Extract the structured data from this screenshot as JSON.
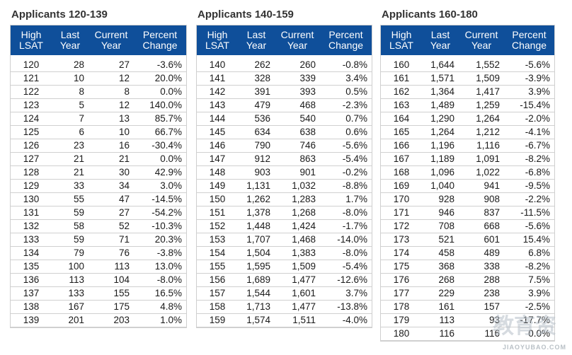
{
  "headers": [
    "High\nLSAT",
    "Last\nYear",
    "Current\nYear",
    "Percent\nChange"
  ],
  "panels": [
    {
      "title": "Applicants 120-139",
      "rows": [
        [
          "120",
          "28",
          "27",
          "-3.6%"
        ],
        [
          "121",
          "10",
          "12",
          "20.0%"
        ],
        [
          "122",
          "8",
          "8",
          "0.0%"
        ],
        [
          "123",
          "5",
          "12",
          "140.0%"
        ],
        [
          "124",
          "7",
          "13",
          "85.7%"
        ],
        [
          "125",
          "6",
          "10",
          "66.7%"
        ],
        [
          "126",
          "23",
          "16",
          "-30.4%"
        ],
        [
          "127",
          "21",
          "21",
          "0.0%"
        ],
        [
          "128",
          "21",
          "30",
          "42.9%"
        ],
        [
          "129",
          "33",
          "34",
          "3.0%"
        ],
        [
          "130",
          "55",
          "47",
          "-14.5%"
        ],
        [
          "131",
          "59",
          "27",
          "-54.2%"
        ],
        [
          "132",
          "58",
          "52",
          "-10.3%"
        ],
        [
          "133",
          "59",
          "71",
          "20.3%"
        ],
        [
          "134",
          "79",
          "76",
          "-3.8%"
        ],
        [
          "135",
          "100",
          "113",
          "13.0%"
        ],
        [
          "136",
          "113",
          "104",
          "-8.0%"
        ],
        [
          "137",
          "133",
          "155",
          "16.5%"
        ],
        [
          "138",
          "167",
          "175",
          "4.8%"
        ],
        [
          "139",
          "201",
          "203",
          "1.0%"
        ]
      ]
    },
    {
      "title": "Applicants 140-159",
      "rows": [
        [
          "140",
          "262",
          "260",
          "-0.8%"
        ],
        [
          "141",
          "328",
          "339",
          "3.4%"
        ],
        [
          "142",
          "391",
          "393",
          "0.5%"
        ],
        [
          "143",
          "479",
          "468",
          "-2.3%"
        ],
        [
          "144",
          "536",
          "540",
          "0.7%"
        ],
        [
          "145",
          "634",
          "638",
          "0.6%"
        ],
        [
          "146",
          "790",
          "746",
          "-5.6%"
        ],
        [
          "147",
          "912",
          "863",
          "-5.4%"
        ],
        [
          "148",
          "903",
          "901",
          "-0.2%"
        ],
        [
          "149",
          "1,131",
          "1,032",
          "-8.8%"
        ],
        [
          "150",
          "1,262",
          "1,283",
          "1.7%"
        ],
        [
          "151",
          "1,378",
          "1,268",
          "-8.0%"
        ],
        [
          "152",
          "1,448",
          "1,424",
          "-1.7%"
        ],
        [
          "153",
          "1,707",
          "1,468",
          "-14.0%"
        ],
        [
          "154",
          "1,504",
          "1,383",
          "-8.0%"
        ],
        [
          "155",
          "1,595",
          "1,509",
          "-5.4%"
        ],
        [
          "156",
          "1,689",
          "1,477",
          "-12.6%"
        ],
        [
          "157",
          "1,544",
          "1,601",
          "3.7%"
        ],
        [
          "158",
          "1,713",
          "1,477",
          "-13.8%"
        ],
        [
          "159",
          "1,574",
          "1,511",
          "-4.0%"
        ]
      ]
    },
    {
      "title": "Applicants 160-180",
      "rows": [
        [
          "160",
          "1,644",
          "1,552",
          "-5.6%"
        ],
        [
          "161",
          "1,571",
          "1,509",
          "-3.9%"
        ],
        [
          "162",
          "1,364",
          "1,417",
          "3.9%"
        ],
        [
          "163",
          "1,489",
          "1,259",
          "-15.4%"
        ],
        [
          "164",
          "1,290",
          "1,264",
          "-2.0%"
        ],
        [
          "165",
          "1,264",
          "1,212",
          "-4.1%"
        ],
        [
          "166",
          "1,196",
          "1,116",
          "-6.7%"
        ],
        [
          "167",
          "1,189",
          "1,091",
          "-8.2%"
        ],
        [
          "168",
          "1,096",
          "1,022",
          "-6.8%"
        ],
        [
          "169",
          "1,040",
          "941",
          "-9.5%"
        ],
        [
          "170",
          "928",
          "908",
          "-2.2%"
        ],
        [
          "171",
          "946",
          "837",
          "-11.5%"
        ],
        [
          "172",
          "708",
          "668",
          "-5.6%"
        ],
        [
          "173",
          "521",
          "601",
          "15.4%"
        ],
        [
          "174",
          "458",
          "489",
          "6.8%"
        ],
        [
          "175",
          "368",
          "338",
          "-8.2%"
        ],
        [
          "176",
          "268",
          "288",
          "7.5%"
        ],
        [
          "177",
          "229",
          "238",
          "3.9%"
        ],
        [
          "178",
          "161",
          "157",
          "-2.5%"
        ],
        [
          "179",
          "113",
          "93",
          "-17.7%"
        ],
        [
          "180",
          "116",
          "116",
          "0.0%"
        ]
      ]
    }
  ],
  "watermark": {
    "mark": "教育资",
    "text": "JIAOYUBAO.COM"
  }
}
